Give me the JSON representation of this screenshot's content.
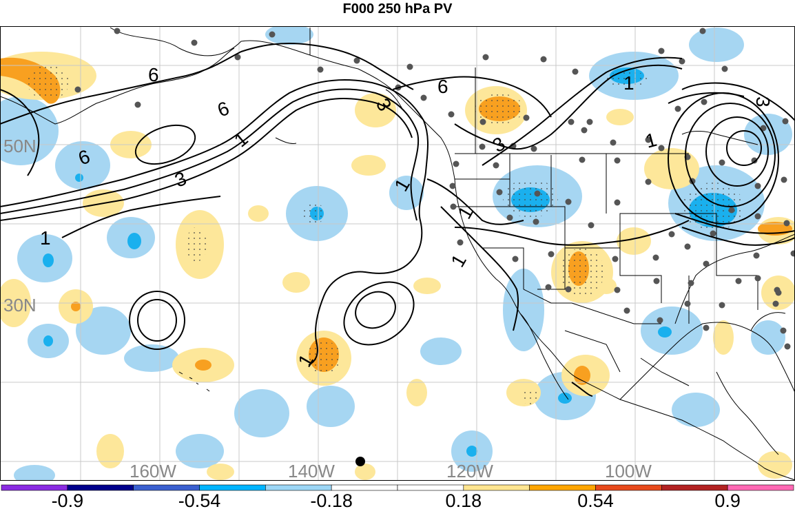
{
  "title": "F000 250 hPa PV",
  "longitude_labels": [
    "160W",
    "140W",
    "120W",
    "100W"
  ],
  "latitude_labels": [
    "50N",
    "30N"
  ],
  "contour_labels": [
    "6",
    "6",
    "6",
    "6",
    "1",
    "1",
    "1",
    "1",
    "1",
    "1",
    "1",
    "1",
    "3",
    "3",
    "3",
    "3"
  ],
  "colorbar": {
    "colors": [
      "#8a2be2",
      "#00008b",
      "#3a60d0",
      "#00b4ff",
      "#9cd6f5",
      "#ffffff",
      "#ffffff",
      "#ffe590",
      "#ffa500",
      "#e84a1c",
      "#b22222",
      "#ff69b4"
    ],
    "tick_labels": [
      "-0.9",
      "-0.54",
      "-0.18",
      "0.18",
      "0.54",
      "0.9"
    ]
  }
}
